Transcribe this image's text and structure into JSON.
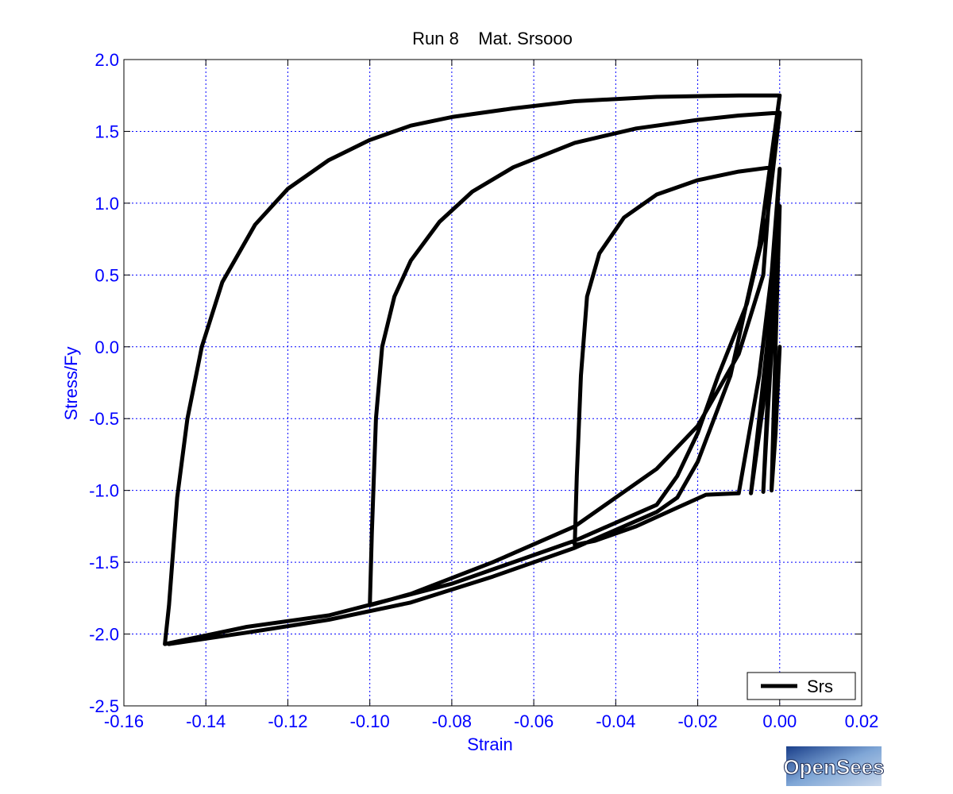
{
  "chart_data": {
    "type": "line",
    "title": "Run 8    Mat. Srsooo",
    "xlabel": "Strain",
    "ylabel": "Stress/Fy",
    "xlim": [
      -0.16,
      0.02
    ],
    "ylim": [
      -2.5,
      2.0
    ],
    "xticks": [
      -0.16,
      -0.14,
      -0.12,
      -0.1,
      -0.08,
      -0.06,
      -0.04,
      -0.02,
      0.0,
      0.02
    ],
    "xtick_labels": [
      "-0.16",
      "-0.14",
      "-0.12",
      "-0.10",
      "-0.08",
      "-0.06",
      "-0.04",
      "-0.02",
      "0.00",
      "0.02"
    ],
    "yticks": [
      -2.5,
      -2.0,
      -1.5,
      -1.0,
      -0.5,
      0.0,
      0.5,
      1.0,
      1.5,
      2.0
    ],
    "ytick_labels": [
      "-2.5",
      "-2.0",
      "-1.5",
      "-1.0",
      "-0.5",
      "0.0",
      "0.5",
      "1.0",
      "1.5",
      "2.0"
    ],
    "grid": true,
    "legend_position": "bottom-right",
    "colors": {
      "axis_text": "#0000ff",
      "grid": "#0000ff",
      "line": "#000000",
      "frame": "#000000"
    },
    "series": [
      {
        "name": "Srs",
        "points": [
          [
            0.0,
            0.0
          ],
          [
            -0.001,
            -0.6
          ],
          [
            -0.002,
            -1.0
          ],
          [
            -0.0015,
            -0.5
          ],
          [
            -0.0008,
            0.2
          ],
          [
            0.0,
            0.98
          ],
          [
            -0.001,
            0.4
          ],
          [
            -0.003,
            -0.4
          ],
          [
            -0.004,
            -1.01
          ],
          [
            -0.003,
            -0.5
          ],
          [
            -0.0015,
            0.2
          ],
          [
            0.0,
            0.98
          ],
          [
            -0.0015,
            0.3
          ],
          [
            -0.004,
            -0.4
          ],
          [
            -0.007,
            -1.02
          ],
          [
            -0.005,
            -0.5
          ],
          [
            -0.002,
            0.3
          ],
          [
            0.0,
            1.24
          ],
          [
            -0.002,
            0.5
          ],
          [
            -0.005,
            -0.2
          ],
          [
            -0.01,
            -1.02
          ],
          [
            -0.018,
            -1.03
          ],
          [
            -0.025,
            -1.12
          ],
          [
            -0.035,
            -1.25
          ],
          [
            -0.045,
            -1.35
          ],
          [
            -0.05,
            -1.38
          ],
          [
            -0.0495,
            -0.9
          ],
          [
            -0.0485,
            -0.2
          ],
          [
            -0.047,
            0.35
          ],
          [
            -0.044,
            0.65
          ],
          [
            -0.038,
            0.9
          ],
          [
            -0.03,
            1.06
          ],
          [
            -0.02,
            1.16
          ],
          [
            -0.01,
            1.22
          ],
          [
            -0.002,
            1.25
          ],
          [
            -0.004,
            0.5
          ],
          [
            -0.01,
            -0.05
          ],
          [
            -0.02,
            -0.55
          ],
          [
            -0.03,
            -0.85
          ],
          [
            -0.05,
            -1.25
          ],
          [
            -0.07,
            -1.5
          ],
          [
            -0.09,
            -1.72
          ],
          [
            -0.1,
            -1.8
          ],
          [
            -0.0995,
            -1.3
          ],
          [
            -0.0985,
            -0.5
          ],
          [
            -0.097,
            0.0
          ],
          [
            -0.094,
            0.35
          ],
          [
            -0.09,
            0.6
          ],
          [
            -0.083,
            0.87
          ],
          [
            -0.075,
            1.08
          ],
          [
            -0.065,
            1.25
          ],
          [
            -0.05,
            1.42
          ],
          [
            -0.035,
            1.52
          ],
          [
            -0.02,
            1.58
          ],
          [
            -0.01,
            1.61
          ],
          [
            0.0,
            1.63
          ],
          [
            -0.003,
            0.9
          ],
          [
            -0.008,
            0.3
          ],
          [
            -0.015,
            -0.2
          ],
          [
            -0.02,
            -0.6
          ],
          [
            -0.025,
            -0.9
          ],
          [
            -0.03,
            -1.1
          ],
          [
            -0.05,
            -1.35
          ],
          [
            -0.08,
            -1.65
          ],
          [
            -0.11,
            -1.87
          ],
          [
            -0.13,
            -1.95
          ],
          [
            -0.15,
            -2.07
          ],
          [
            -0.149,
            -1.8
          ],
          [
            -0.147,
            -1.05
          ],
          [
            -0.1445,
            -0.5
          ],
          [
            -0.141,
            0.0
          ],
          [
            -0.136,
            0.45
          ],
          [
            -0.128,
            0.85
          ],
          [
            -0.12,
            1.1
          ],
          [
            -0.11,
            1.3
          ],
          [
            -0.1,
            1.44
          ],
          [
            -0.09,
            1.54
          ],
          [
            -0.08,
            1.6
          ],
          [
            -0.065,
            1.66
          ],
          [
            -0.05,
            1.71
          ],
          [
            -0.03,
            1.74
          ],
          [
            -0.01,
            1.75
          ],
          [
            0.0,
            1.75
          ],
          [
            -0.005,
            0.7
          ],
          [
            -0.012,
            -0.2
          ],
          [
            -0.02,
            -0.8
          ],
          [
            -0.025,
            -1.05
          ],
          [
            -0.03,
            -1.15
          ],
          [
            -0.05,
            -1.4
          ],
          [
            -0.07,
            -1.6
          ],
          [
            -0.09,
            -1.78
          ],
          [
            -0.11,
            -1.9
          ],
          [
            -0.13,
            -1.99
          ],
          [
            -0.149,
            -2.07
          ]
        ]
      }
    ]
  },
  "legend": {
    "label": "Srs"
  },
  "logo": {
    "text": "OpenSees"
  }
}
